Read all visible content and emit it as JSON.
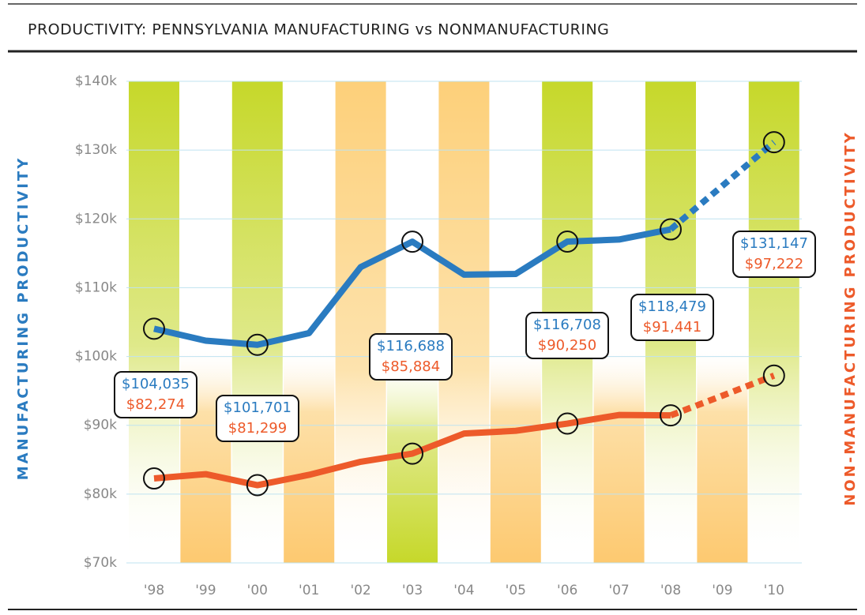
{
  "chart_data": {
    "type": "line",
    "title": "PRODUCTIVITY: PENNSYLVANIA MANUFACTURING vs NONMANUFACTURING",
    "y_axis_label": "MANUFACTURING PRODUCTIVITY",
    "y2_axis_label": "NON-MANUFACTURING PRODUCTIVITY",
    "categories": [
      "'98",
      "'99",
      "'00",
      "'01",
      "'02",
      "'03",
      "'04",
      "'05",
      "'06",
      "'07",
      "'08",
      "'09",
      "'10"
    ],
    "dashed_from_category": "'08",
    "series": [
      {
        "name": "Manufacturing",
        "color": "#2a7bc0",
        "values": [
          104035,
          102300,
          101701,
          103400,
          113000,
          116688,
          111900,
          112000,
          116708,
          117000,
          118479,
          124800,
          131147
        ],
        "value_labels": [
          "$104,035",
          null,
          "$101,701",
          null,
          null,
          "$116,688",
          null,
          null,
          "$116,708",
          null,
          "$118,479",
          null,
          "$131,147"
        ]
      },
      {
        "name": "Nonmanufacturing",
        "color": "#ed5a2a",
        "values": [
          82274,
          82900,
          81299,
          82800,
          84700,
          85884,
          88800,
          89200,
          90250,
          91500,
          91441,
          94300,
          97222
        ],
        "value_labels": [
          "$82,274",
          null,
          "$81,299",
          null,
          null,
          "$85,884",
          null,
          null,
          "$90,250",
          null,
          "$91,441",
          null,
          "$97,222"
        ]
      }
    ],
    "ylim": [
      70000,
      140000
    ],
    "yticks": [
      {
        "value": 70000,
        "label": "$70k"
      },
      {
        "value": 80000,
        "label": "$80k"
      },
      {
        "value": 90000,
        "label": "$90k"
      },
      {
        "value": 100000,
        "label": "$100k"
      },
      {
        "value": 110000,
        "label": "$110k"
      },
      {
        "value": 120000,
        "label": "$120k"
      },
      {
        "value": 130000,
        "label": "$130k"
      },
      {
        "value": 140000,
        "label": "$140k"
      }
    ],
    "grid": true
  }
}
